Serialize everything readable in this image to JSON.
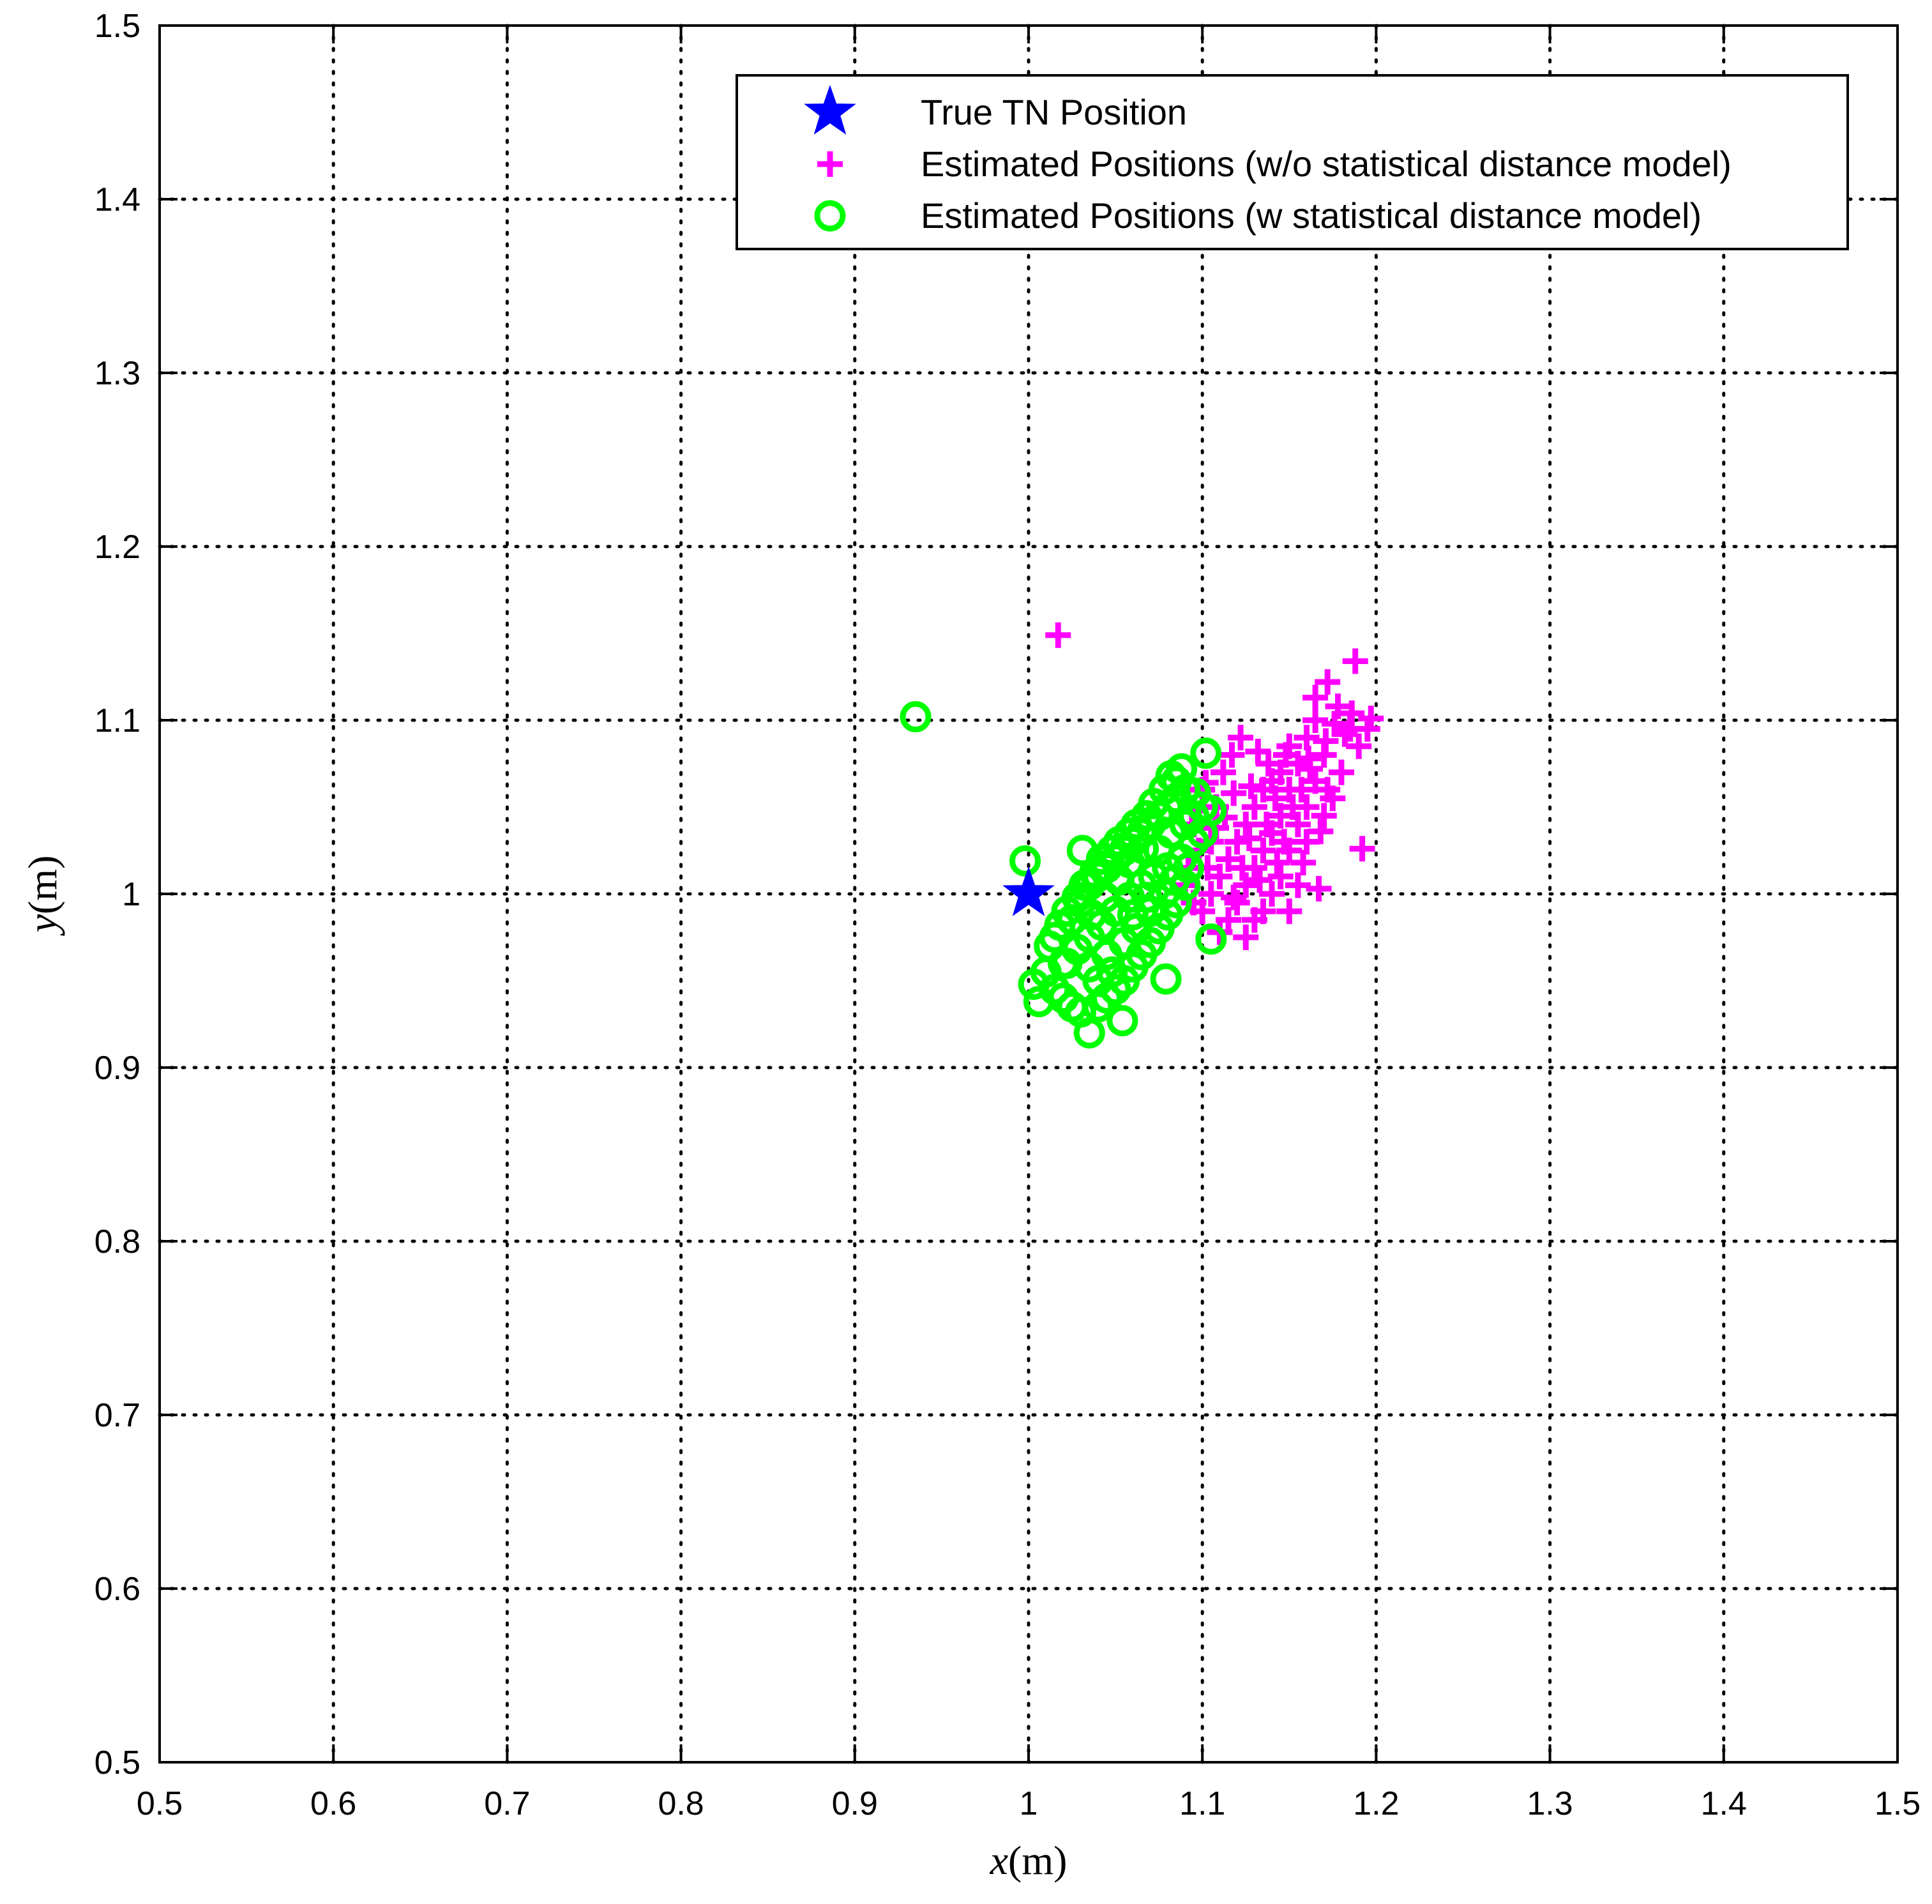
{
  "chart_data": {
    "type": "scatter",
    "title": "",
    "xlabel": "x",
    "ylabel": "y",
    "xunit": "(m)",
    "yunit": "(m)",
    "xlim": [
      0.5,
      1.5
    ],
    "ylim": [
      0.5,
      1.5
    ],
    "xticks": [
      "0.5",
      "0.6",
      "0.7",
      "0.8",
      "0.9",
      "1",
      "1.1",
      "1.2",
      "1.3",
      "1.4",
      "1.5"
    ],
    "yticks": [
      "0.5",
      "0.6",
      "0.7",
      "0.8",
      "0.9",
      "1",
      "1.1",
      "1.2",
      "1.3",
      "1.4",
      "1.5"
    ],
    "grid": true,
    "legend_position": "top-right",
    "series": [
      {
        "name": "True TN Position",
        "marker": "star",
        "color": "#0000ff",
        "points": [
          [
            1.0,
            1.0
          ]
        ]
      },
      {
        "name": "Estimated Positions (w/o statistical distance model)",
        "marker": "plus",
        "color": "#ff00ff",
        "points": [
          [
            1.017,
            1.149
          ],
          [
            1.188,
            1.134
          ],
          [
            1.192,
            1.026
          ],
          [
            1.167,
            1.003
          ],
          [
            1.197,
            1.101
          ],
          [
            1.178,
            1.108
          ],
          [
            1.172,
            1.122
          ],
          [
            1.165,
            1.113
          ],
          [
            1.185,
            1.095
          ],
          [
            1.16,
            1.09
          ],
          [
            1.15,
            1.085
          ],
          [
            1.155,
            1.075
          ],
          [
            1.145,
            1.07
          ],
          [
            1.14,
            1.065
          ],
          [
            1.135,
            1.06
          ],
          [
            1.15,
            1.06
          ],
          [
            1.165,
            1.065
          ],
          [
            1.17,
            1.08
          ],
          [
            1.16,
            1.05
          ],
          [
            1.145,
            1.045
          ],
          [
            1.13,
            1.05
          ],
          [
            1.125,
            1.04
          ],
          [
            1.14,
            1.035
          ],
          [
            1.155,
            1.04
          ],
          [
            1.17,
            1.045
          ],
          [
            1.12,
            1.03
          ],
          [
            1.135,
            1.025
          ],
          [
            1.15,
            1.025
          ],
          [
            1.115,
            1.02
          ],
          [
            1.13,
            1.015
          ],
          [
            1.145,
            1.01
          ],
          [
            1.11,
            1.01
          ],
          [
            1.125,
            1.005
          ],
          [
            1.14,
            1.0
          ],
          [
            1.105,
            1.0
          ],
          [
            1.12,
            0.995
          ],
          [
            1.135,
            0.99
          ],
          [
            1.1,
            0.99
          ],
          [
            1.115,
            0.985
          ],
          [
            1.13,
            0.985
          ],
          [
            1.11,
            0.978
          ],
          [
            1.125,
            0.975
          ],
          [
            1.15,
            0.99
          ],
          [
            1.155,
            1.005
          ],
          [
            1.16,
            1.03
          ],
          [
            1.175,
            1.055
          ],
          [
            1.18,
            1.07
          ],
          [
            1.19,
            1.085
          ],
          [
            1.195,
            1.095
          ],
          [
            1.165,
            1.1
          ],
          [
            1.148,
            1.08
          ],
          [
            1.138,
            1.075
          ],
          [
            1.128,
            1.062
          ],
          [
            1.118,
            1.058
          ],
          [
            1.108,
            1.05
          ],
          [
            1.1,
            1.06
          ],
          [
            1.112,
            1.07
          ],
          [
            1.095,
            1.04
          ],
          [
            1.098,
            1.025
          ],
          [
            1.105,
            1.03
          ],
          [
            1.092,
            1.015
          ],
          [
            1.09,
            1.005
          ],
          [
            1.095,
            0.995
          ],
          [
            1.103,
            1.015
          ],
          [
            1.142,
            1.055
          ],
          [
            1.152,
            1.05
          ],
          [
            1.162,
            1.072
          ],
          [
            1.172,
            1.06
          ],
          [
            1.168,
            1.036
          ],
          [
            1.158,
            1.018
          ],
          [
            1.143,
            1.018
          ],
          [
            1.133,
            1.008
          ],
          [
            1.118,
            0.998
          ],
          [
            1.123,
            1.015
          ],
          [
            1.108,
            1.038
          ],
          [
            1.182,
            1.092
          ],
          [
            1.176,
            1.098
          ],
          [
            1.186,
            1.104
          ],
          [
            1.171,
            1.088
          ],
          [
            1.161,
            1.078
          ],
          [
            1.137,
            1.04
          ],
          [
            1.127,
            1.032
          ],
          [
            1.147,
            1.03
          ],
          [
            1.157,
            1.06
          ],
          [
            1.113,
            1.044
          ],
          [
            1.102,
            1.064
          ],
          [
            1.094,
            1.048
          ],
          [
            1.117,
            1.08
          ],
          [
            1.122,
            1.09
          ],
          [
            1.132,
            1.082
          ]
        ]
      },
      {
        "name": "Estimated Positions (w statistical distance model)",
        "marker": "circle",
        "color": "#00ff00",
        "points": [
          [
            0.935,
            1.102
          ],
          [
            0.998,
            1.019
          ],
          [
            1.031,
            1.025
          ],
          [
            1.102,
            1.081
          ],
          [
            1.105,
            0.974
          ],
          [
            1.079,
            0.951
          ],
          [
            1.003,
            0.948
          ],
          [
            1.006,
            0.938
          ],
          [
            1.035,
            0.92
          ],
          [
            1.054,
            0.927
          ],
          [
            1.02,
            0.96
          ],
          [
            1.015,
            0.975
          ],
          [
            1.025,
            0.985
          ],
          [
            1.03,
            0.995
          ],
          [
            1.035,
            1.005
          ],
          [
            1.04,
            1.01
          ],
          [
            1.045,
            1.015
          ],
          [
            1.05,
            1.02
          ],
          [
            1.055,
            1.025
          ],
          [
            1.06,
            1.03
          ],
          [
            1.065,
            1.035
          ],
          [
            1.07,
            1.04
          ],
          [
            1.075,
            1.045
          ],
          [
            1.08,
            1.05
          ],
          [
            1.085,
            1.055
          ],
          [
            1.09,
            1.06
          ],
          [
            1.095,
            1.045
          ],
          [
            1.1,
            1.05
          ],
          [
            1.105,
            1.048
          ],
          [
            1.1,
            1.035
          ],
          [
            1.095,
            1.03
          ],
          [
            1.09,
            1.04
          ],
          [
            1.085,
            1.065
          ],
          [
            1.088,
            1.072
          ],
          [
            1.082,
            1.068
          ],
          [
            1.078,
            1.06
          ],
          [
            1.072,
            1.052
          ],
          [
            1.068,
            1.045
          ],
          [
            1.062,
            1.04
          ],
          [
            1.058,
            1.035
          ],
          [
            1.052,
            1.03
          ],
          [
            1.048,
            1.025
          ],
          [
            1.042,
            1.02
          ],
          [
            1.038,
            1.012
          ],
          [
            1.032,
            1.005
          ],
          [
            1.028,
            0.998
          ],
          [
            1.022,
            0.99
          ],
          [
            1.018,
            0.982
          ],
          [
            1.012,
            0.97
          ],
          [
            1.01,
            0.955
          ],
          [
            1.015,
            0.945
          ],
          [
            1.02,
            0.94
          ],
          [
            1.025,
            0.935
          ],
          [
            1.03,
            0.932
          ],
          [
            1.04,
            0.935
          ],
          [
            1.045,
            0.94
          ],
          [
            1.05,
            0.945
          ],
          [
            1.055,
            0.95
          ],
          [
            1.06,
            0.958
          ],
          [
            1.065,
            0.965
          ],
          [
            1.07,
            0.972
          ],
          [
            1.075,
            0.98
          ],
          [
            1.08,
            0.988
          ],
          [
            1.085,
            0.995
          ],
          [
            1.09,
            1.005
          ],
          [
            1.092,
            1.015
          ],
          [
            1.088,
            1.02
          ],
          [
            1.08,
            1.015
          ],
          [
            1.072,
            1.01
          ],
          [
            1.065,
            1.005
          ],
          [
            1.058,
            0.998
          ],
          [
            1.05,
            0.99
          ],
          [
            1.042,
            0.982
          ],
          [
            1.035,
            0.975
          ],
          [
            1.028,
            0.968
          ],
          [
            1.022,
            0.96
          ],
          [
            1.035,
            0.958
          ],
          [
            1.045,
            0.965
          ],
          [
            1.055,
            0.972
          ],
          [
            1.062,
            0.98
          ],
          [
            1.07,
            0.99
          ],
          [
            1.078,
            1.0
          ],
          [
            1.084,
            1.008
          ],
          [
            1.048,
            0.955
          ],
          [
            1.04,
            0.95
          ],
          [
            1.06,
            0.988
          ],
          [
            1.068,
            0.998
          ],
          [
            1.075,
            1.025
          ],
          [
            1.082,
            1.035
          ],
          [
            1.096,
            1.058
          ],
          [
            1.052,
            1.008
          ],
          [
            1.044,
            0.998
          ],
          [
            1.036,
            0.988
          ],
          [
            1.058,
            1.018
          ],
          [
            1.066,
            1.026
          ]
        ]
      }
    ]
  }
}
